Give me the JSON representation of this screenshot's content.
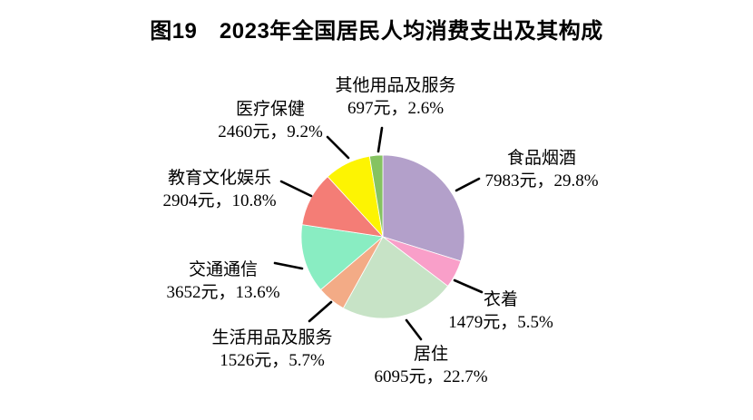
{
  "title": "图19　2023年全国居民人均消费支出及其构成",
  "chart_data": {
    "type": "pie",
    "title": "图19　2023年全国居民人均消费支出及其构成",
    "unit": "元",
    "start_angle_deg": 0,
    "direction": "clockwise",
    "legend_position": "none",
    "label_format": "{label}\n{amount}元，{percent}%",
    "total_percent": 99.9,
    "slices": [
      {
        "key": "food-tobacco",
        "label": "食品烟酒",
        "amount_yuan": 7983,
        "percent": 29.8,
        "value_text": "7983元，29.8%",
        "color": "#b3a0ca"
      },
      {
        "key": "clothing",
        "label": "衣着",
        "amount_yuan": 1479,
        "percent": 5.5,
        "value_text": "1479元，5.5%",
        "color": "#f99fc9"
      },
      {
        "key": "housing",
        "label": "居住",
        "amount_yuan": 6095,
        "percent": 22.7,
        "value_text": "6095元，22.7%",
        "color": "#c7e3c6"
      },
      {
        "key": "household-goods-services",
        "label": "生活用品及服务",
        "amount_yuan": 1526,
        "percent": 5.7,
        "value_text": "1526元，5.7%",
        "color": "#f3ab86"
      },
      {
        "key": "transport-communication",
        "label": "交通通信",
        "amount_yuan": 3652,
        "percent": 13.6,
        "value_text": "3652元，13.6%",
        "color": "#89edc2"
      },
      {
        "key": "education-culture-recreation",
        "label": "教育文化娱乐",
        "amount_yuan": 2904,
        "percent": 10.8,
        "value_text": "2904元，10.8%",
        "color": "#f47d76"
      },
      {
        "key": "healthcare",
        "label": "医疗保健",
        "amount_yuan": 2460,
        "percent": 9.2,
        "value_text": "2460元，9.2%",
        "color": "#fdf402"
      },
      {
        "key": "other-goods-services",
        "label": "其他用品及服务",
        "amount_yuan": 697,
        "percent": 2.6,
        "value_text": "697元，2.6%",
        "color": "#85c361"
      }
    ]
  }
}
